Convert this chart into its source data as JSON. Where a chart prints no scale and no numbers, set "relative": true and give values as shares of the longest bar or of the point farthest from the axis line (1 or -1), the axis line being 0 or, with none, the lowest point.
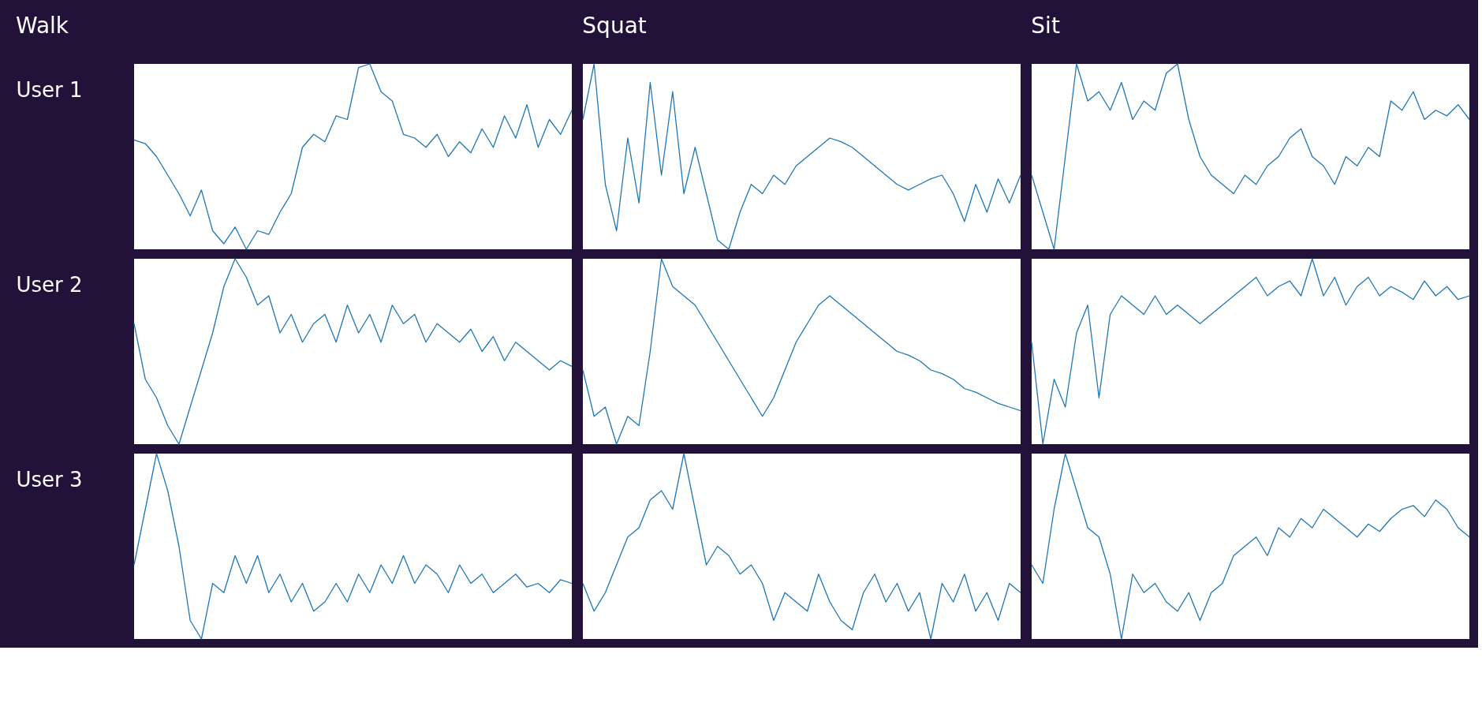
{
  "chart_data": [
    {
      "type": "line",
      "relative": true,
      "title": "Walk",
      "ylabel": "User 1",
      "categories": [
        null,
        null,
        null,
        null,
        null,
        null,
        null,
        null,
        null,
        null,
        null,
        null,
        null,
        null,
        null,
        null,
        null,
        null,
        null,
        null,
        null,
        null,
        null,
        null,
        null,
        null,
        null,
        null,
        null,
        null,
        null,
        null,
        null,
        null,
        null,
        null,
        null,
        null,
        null,
        null
      ],
      "series": [
        {
          "color": "#1f77b4",
          "values": [
            0.59,
            0.57,
            0.5,
            0.4,
            0.3,
            0.18,
            0.32,
            0.1,
            0.03,
            0.12,
            0.0,
            0.1,
            0.08,
            0.2,
            0.3,
            0.55,
            0.62,
            0.58,
            0.72,
            0.7,
            0.98,
            1.0,
            0.85,
            0.8,
            0.62,
            0.6,
            0.55,
            0.62,
            0.5,
            0.58,
            0.52,
            0.65,
            0.55,
            0.72,
            0.6,
            0.78,
            0.55,
            0.7,
            0.62,
            0.75
          ]
        }
      ]
    },
    {
      "type": "line",
      "relative": true,
      "title": "Squat",
      "categories": [
        null,
        null,
        null,
        null,
        null,
        null,
        null,
        null,
        null,
        null,
        null,
        null,
        null,
        null,
        null,
        null,
        null,
        null,
        null,
        null,
        null,
        null,
        null,
        null,
        null,
        null,
        null,
        null,
        null,
        null,
        null,
        null,
        null,
        null,
        null,
        null,
        null,
        null,
        null,
        null
      ],
      "series": [
        {
          "color": "#1f77b4",
          "values": [
            0.7,
            1.0,
            0.35,
            0.1,
            0.6,
            0.25,
            0.9,
            0.4,
            0.85,
            0.3,
            0.55,
            0.3,
            0.05,
            0.0,
            0.2,
            0.35,
            0.3,
            0.4,
            0.35,
            0.45,
            0.5,
            0.55,
            0.6,
            0.58,
            0.55,
            0.5,
            0.45,
            0.4,
            0.35,
            0.32,
            0.35,
            0.38,
            0.4,
            0.3,
            0.15,
            0.35,
            0.2,
            0.38,
            0.25,
            0.4
          ]
        }
      ]
    },
    {
      "type": "line",
      "relative": true,
      "title": "Sit",
      "categories": [
        null,
        null,
        null,
        null,
        null,
        null,
        null,
        null,
        null,
        null,
        null,
        null,
        null,
        null,
        null,
        null,
        null,
        null,
        null,
        null,
        null,
        null,
        null,
        null,
        null,
        null,
        null,
        null,
        null,
        null,
        null,
        null,
        null,
        null,
        null,
        null,
        null,
        null,
        null,
        null
      ],
      "series": [
        {
          "color": "#1f77b4",
          "values": [
            0.4,
            0.2,
            0.0,
            0.5,
            1.0,
            0.8,
            0.85,
            0.75,
            0.9,
            0.7,
            0.8,
            0.75,
            0.95,
            1.0,
            0.7,
            0.5,
            0.4,
            0.35,
            0.3,
            0.4,
            0.35,
            0.45,
            0.5,
            0.6,
            0.65,
            0.5,
            0.45,
            0.35,
            0.5,
            0.45,
            0.55,
            0.5,
            0.8,
            0.75,
            0.85,
            0.7,
            0.75,
            0.72,
            0.78,
            0.7
          ]
        }
      ]
    },
    {
      "type": "line",
      "relative": true,
      "ylabel": "User 2",
      "categories": [
        null,
        null,
        null,
        null,
        null,
        null,
        null,
        null,
        null,
        null,
        null,
        null,
        null,
        null,
        null,
        null,
        null,
        null,
        null,
        null,
        null,
        null,
        null,
        null,
        null,
        null,
        null,
        null,
        null,
        null,
        null,
        null,
        null,
        null,
        null,
        null,
        null,
        null,
        null,
        null
      ],
      "series": [
        {
          "color": "#1f77b4",
          "values": [
            0.65,
            0.35,
            0.25,
            0.1,
            0.0,
            0.2,
            0.4,
            0.6,
            0.85,
            1.0,
            0.9,
            0.75,
            0.8,
            0.6,
            0.7,
            0.55,
            0.65,
            0.7,
            0.55,
            0.75,
            0.6,
            0.7,
            0.55,
            0.75,
            0.65,
            0.7,
            0.55,
            0.65,
            0.6,
            0.55,
            0.62,
            0.5,
            0.58,
            0.45,
            0.55,
            0.5,
            0.45,
            0.4,
            0.45,
            0.42
          ]
        }
      ]
    },
    {
      "type": "line",
      "relative": true,
      "categories": [
        null,
        null,
        null,
        null,
        null,
        null,
        null,
        null,
        null,
        null,
        null,
        null,
        null,
        null,
        null,
        null,
        null,
        null,
        null,
        null,
        null,
        null,
        null,
        null,
        null,
        null,
        null,
        null,
        null,
        null,
        null,
        null,
        null,
        null,
        null,
        null,
        null,
        null,
        null,
        null
      ],
      "series": [
        {
          "color": "#1f77b4",
          "values": [
            0.4,
            0.15,
            0.2,
            0.0,
            0.15,
            0.1,
            0.5,
            1.0,
            0.85,
            0.8,
            0.75,
            0.65,
            0.55,
            0.45,
            0.35,
            0.25,
            0.15,
            0.25,
            0.4,
            0.55,
            0.65,
            0.75,
            0.8,
            0.75,
            0.7,
            0.65,
            0.6,
            0.55,
            0.5,
            0.48,
            0.45,
            0.4,
            0.38,
            0.35,
            0.3,
            0.28,
            0.25,
            0.22,
            0.2,
            0.18
          ]
        }
      ]
    },
    {
      "type": "line",
      "relative": true,
      "categories": [
        null,
        null,
        null,
        null,
        null,
        null,
        null,
        null,
        null,
        null,
        null,
        null,
        null,
        null,
        null,
        null,
        null,
        null,
        null,
        null,
        null,
        null,
        null,
        null,
        null,
        null,
        null,
        null,
        null,
        null,
        null,
        null,
        null,
        null,
        null,
        null,
        null,
        null,
        null,
        null
      ],
      "series": [
        {
          "color": "#1f77b4",
          "values": [
            0.55,
            0.0,
            0.35,
            0.2,
            0.6,
            0.75,
            0.25,
            0.7,
            0.8,
            0.75,
            0.7,
            0.8,
            0.7,
            0.75,
            0.7,
            0.65,
            0.7,
            0.75,
            0.8,
            0.85,
            0.9,
            0.8,
            0.85,
            0.88,
            0.8,
            1.0,
            0.8,
            0.9,
            0.75,
            0.85,
            0.9,
            0.8,
            0.85,
            0.82,
            0.78,
            0.88,
            0.8,
            0.85,
            0.78,
            0.8
          ]
        }
      ]
    },
    {
      "type": "line",
      "relative": true,
      "ylabel": "User 3",
      "categories": [
        null,
        null,
        null,
        null,
        null,
        null,
        null,
        null,
        null,
        null,
        null,
        null,
        null,
        null,
        null,
        null,
        null,
        null,
        null,
        null,
        null,
        null,
        null,
        null,
        null,
        null,
        null,
        null,
        null,
        null,
        null,
        null,
        null,
        null,
        null,
        null,
        null,
        null,
        null,
        null
      ],
      "series": [
        {
          "color": "#1f77b4",
          "values": [
            0.4,
            0.7,
            1.0,
            0.8,
            0.5,
            0.1,
            0.0,
            0.3,
            0.25,
            0.45,
            0.3,
            0.45,
            0.25,
            0.35,
            0.2,
            0.3,
            0.15,
            0.2,
            0.3,
            0.2,
            0.35,
            0.25,
            0.4,
            0.3,
            0.45,
            0.3,
            0.4,
            0.35,
            0.25,
            0.4,
            0.3,
            0.35,
            0.25,
            0.3,
            0.35,
            0.28,
            0.3,
            0.25,
            0.32,
            0.3
          ]
        }
      ]
    },
    {
      "type": "line",
      "relative": true,
      "categories": [
        null,
        null,
        null,
        null,
        null,
        null,
        null,
        null,
        null,
        null,
        null,
        null,
        null,
        null,
        null,
        null,
        null,
        null,
        null,
        null,
        null,
        null,
        null,
        null,
        null,
        null,
        null,
        null,
        null,
        null,
        null,
        null,
        null,
        null,
        null,
        null,
        null,
        null,
        null,
        null
      ],
      "series": [
        {
          "color": "#1f77b4",
          "values": [
            0.3,
            0.15,
            0.25,
            0.4,
            0.55,
            0.6,
            0.75,
            0.8,
            0.7,
            1.0,
            0.7,
            0.4,
            0.5,
            0.45,
            0.35,
            0.4,
            0.3,
            0.1,
            0.25,
            0.2,
            0.15,
            0.35,
            0.2,
            0.1,
            0.05,
            0.25,
            0.35,
            0.2,
            0.3,
            0.15,
            0.25,
            0.0,
            0.3,
            0.2,
            0.35,
            0.15,
            0.25,
            0.1,
            0.3,
            0.25
          ]
        }
      ]
    },
    {
      "type": "line",
      "relative": true,
      "categories": [
        null,
        null,
        null,
        null,
        null,
        null,
        null,
        null,
        null,
        null,
        null,
        null,
        null,
        null,
        null,
        null,
        null,
        null,
        null,
        null,
        null,
        null,
        null,
        null,
        null,
        null,
        null,
        null,
        null,
        null,
        null,
        null,
        null,
        null,
        null,
        null,
        null,
        null,
        null,
        null
      ],
      "series": [
        {
          "color": "#1f77b4",
          "values": [
            0.4,
            0.3,
            0.7,
            1.0,
            0.8,
            0.6,
            0.55,
            0.35,
            0.0,
            0.35,
            0.25,
            0.3,
            0.2,
            0.15,
            0.25,
            0.1,
            0.25,
            0.3,
            0.45,
            0.5,
            0.55,
            0.45,
            0.6,
            0.55,
            0.65,
            0.6,
            0.7,
            0.65,
            0.6,
            0.55,
            0.62,
            0.58,
            0.65,
            0.7,
            0.72,
            0.66,
            0.75,
            0.7,
            0.6,
            0.55
          ]
        }
      ]
    }
  ]
}
